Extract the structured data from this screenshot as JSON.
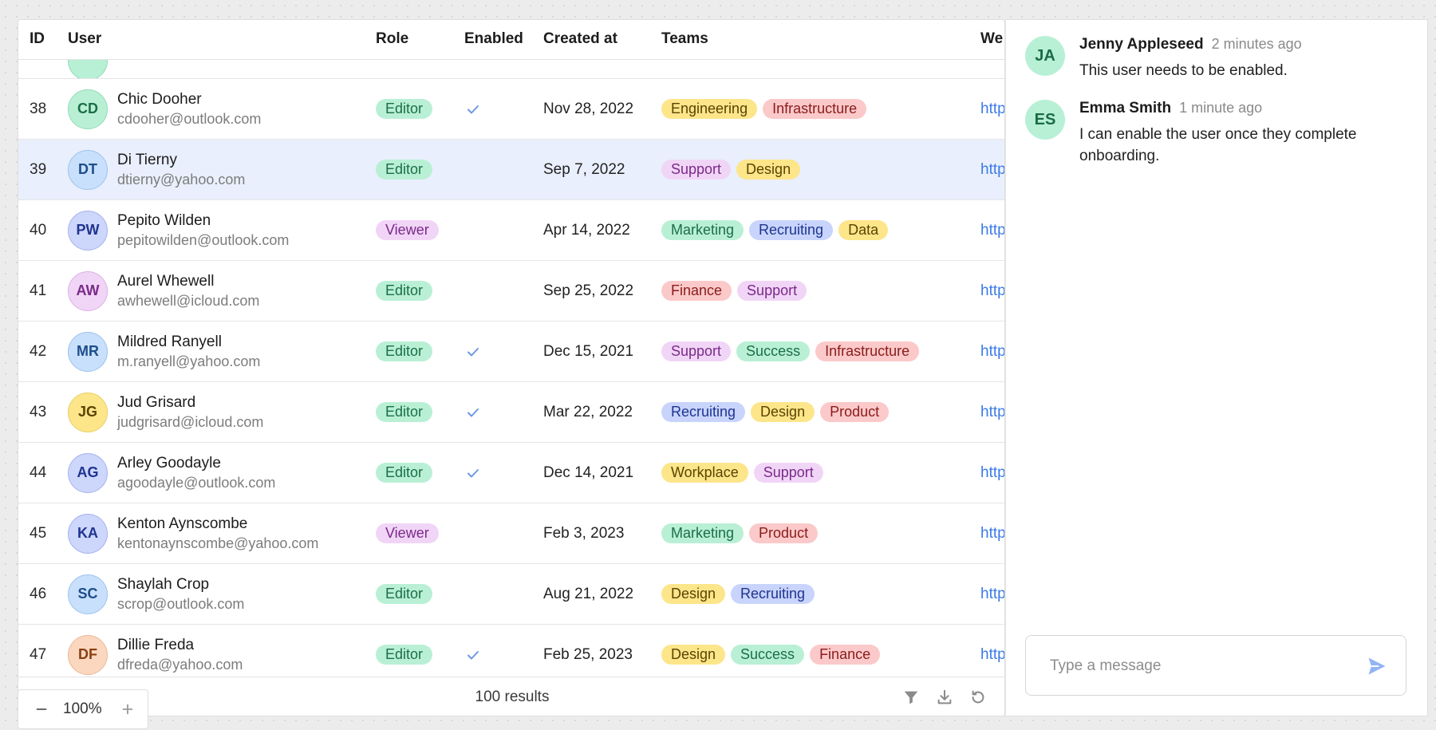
{
  "columns": {
    "id": "ID",
    "user": "User",
    "role": "Role",
    "enabled": "Enabled",
    "created": "Created at",
    "teams": "Teams",
    "website": "We"
  },
  "colors": {
    "role": {
      "Editor": [
        "#b9f0d5",
        "#1c6e47"
      ],
      "Viewer": [
        "#f1d5f6",
        "#7a2a8a"
      ]
    },
    "team": {
      "Engineering": [
        "#fde58a",
        "#5c4300"
      ],
      "Infrastructure": [
        "#fbc9c9",
        "#8a1c1c"
      ],
      "Support": [
        "#f1d5f6",
        "#7a2a8a"
      ],
      "Design": [
        "#fde58a",
        "#5c4300"
      ],
      "Marketing": [
        "#b9f0d5",
        "#1c6e47"
      ],
      "Recruiting": [
        "#c8d4fb",
        "#1f3490"
      ],
      "Data": [
        "#fde58a",
        "#5c4300"
      ],
      "Finance": [
        "#fbc9c9",
        "#8a1c1c"
      ],
      "Success": [
        "#b9f0d5",
        "#1c6e47"
      ],
      "Product": [
        "#fbc9c9",
        "#8a1c1c"
      ],
      "Workplace": [
        "#fde58a",
        "#5c4300"
      ]
    },
    "avatar": {
      "green": [
        "#b9f0d5",
        "#8fdcb8",
        "#1c6e47"
      ],
      "blue": [
        "#c8e0fb",
        "#9dc2ee",
        "#1f4d8a"
      ],
      "indigo": [
        "#cdd6fb",
        "#a5b3ee",
        "#1f3490"
      ],
      "purple": [
        "#f1d5f6",
        "#dcb1e6",
        "#7a2a8a"
      ],
      "yellow": [
        "#fde58a",
        "#e9cf62",
        "#5c4300"
      ],
      "orange": [
        "#fbd7bf",
        "#ecb896",
        "#8a3f12"
      ]
    }
  },
  "rows": [
    {
      "id": "38",
      "initials": "CD",
      "avatar": "green",
      "name": "Chic Dooher",
      "email": "cdooher@outlook.com",
      "role": "Editor",
      "enabled": true,
      "created": "Nov 28, 2022",
      "teams": [
        "Engineering",
        "Infrastructure"
      ],
      "web": "http",
      "selected": false
    },
    {
      "id": "39",
      "initials": "DT",
      "avatar": "blue",
      "name": "Di Tierny",
      "email": "dtierny@yahoo.com",
      "role": "Editor",
      "enabled": false,
      "created": "Sep 7, 2022",
      "teams": [
        "Support",
        "Design"
      ],
      "web": "http",
      "selected": true
    },
    {
      "id": "40",
      "initials": "PW",
      "avatar": "indigo",
      "name": "Pepito Wilden",
      "email": "pepitowilden@outlook.com",
      "role": "Viewer",
      "enabled": false,
      "created": "Apr 14, 2022",
      "teams": [
        "Marketing",
        "Recruiting",
        "Data"
      ],
      "web": "http",
      "selected": false
    },
    {
      "id": "41",
      "initials": "AW",
      "avatar": "purple",
      "name": "Aurel Whewell",
      "email": "awhewell@icloud.com",
      "role": "Editor",
      "enabled": false,
      "created": "Sep 25, 2022",
      "teams": [
        "Finance",
        "Support"
      ],
      "web": "http",
      "selected": false
    },
    {
      "id": "42",
      "initials": "MR",
      "avatar": "blue",
      "name": "Mildred Ranyell",
      "email": "m.ranyell@yahoo.com",
      "role": "Editor",
      "enabled": true,
      "created": "Dec 15, 2021",
      "teams": [
        "Support",
        "Success",
        "Infrastructure"
      ],
      "web": "http",
      "selected": false
    },
    {
      "id": "43",
      "initials": "JG",
      "avatar": "yellow",
      "name": "Jud Grisard",
      "email": "judgrisard@icloud.com",
      "role": "Editor",
      "enabled": true,
      "created": "Mar 22, 2022",
      "teams": [
        "Recruiting",
        "Design",
        "Product"
      ],
      "web": "http",
      "selected": false
    },
    {
      "id": "44",
      "initials": "AG",
      "avatar": "indigo",
      "name": "Arley Goodayle",
      "email": "agoodayle@outlook.com",
      "role": "Editor",
      "enabled": true,
      "created": "Dec 14, 2021",
      "teams": [
        "Workplace",
        "Support"
      ],
      "web": "http",
      "selected": false
    },
    {
      "id": "45",
      "initials": "KA",
      "avatar": "indigo",
      "name": "Kenton Aynscombe",
      "email": "kentonaynscombe@yahoo.com",
      "role": "Viewer",
      "enabled": false,
      "created": "Feb 3, 2023",
      "teams": [
        "Marketing",
        "Product"
      ],
      "web": "http",
      "selected": false
    },
    {
      "id": "46",
      "initials": "SC",
      "avatar": "blue",
      "name": "Shaylah Crop",
      "email": "scrop@outlook.com",
      "role": "Editor",
      "enabled": false,
      "created": "Aug 21, 2022",
      "teams": [
        "Design",
        "Recruiting"
      ],
      "web": "http",
      "selected": false
    },
    {
      "id": "47",
      "initials": "DF",
      "avatar": "orange",
      "name": "Dillie Freda",
      "email": "dfreda@yahoo.com",
      "role": "Editor",
      "enabled": true,
      "created": "Feb 25, 2023",
      "teams": [
        "Design",
        "Success",
        "Finance"
      ],
      "web": "http",
      "selected": false
    }
  ],
  "footer": {
    "results": "100 results"
  },
  "zoom": {
    "value": "100%"
  },
  "comments": [
    {
      "initials": "JA",
      "author": "Jenny Appleseed",
      "time": "2 minutes ago",
      "text": "This user needs to be enabled."
    },
    {
      "initials": "ES",
      "author": "Emma Smith",
      "time": "1 minute ago",
      "text": "I can enable the user once they complete onboarding."
    }
  ],
  "message": {
    "placeholder": "Type a message"
  }
}
